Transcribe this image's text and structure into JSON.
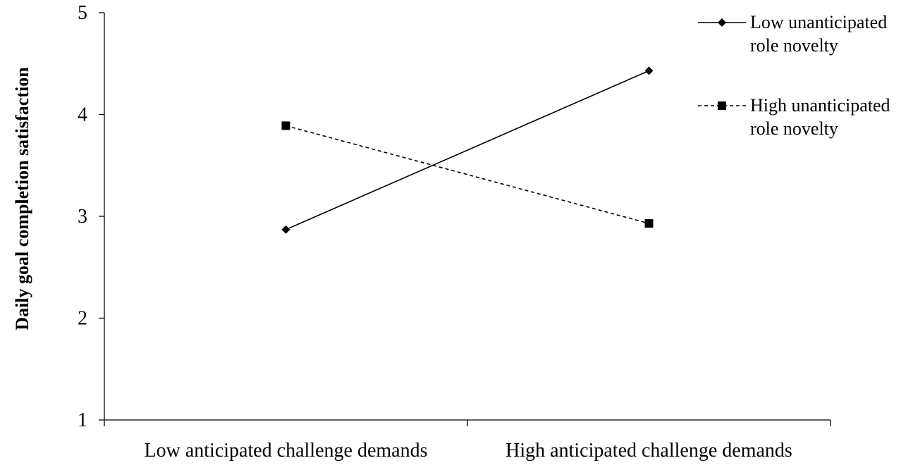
{
  "chart_data": {
    "type": "line",
    "title": "",
    "xlabel": "",
    "ylabel": "Daily goal completion satisfaction",
    "categories": [
      "Low anticipated challenge demands",
      "High anticipated challenge demands"
    ],
    "ylim": [
      1,
      5
    ],
    "yticks": [
      1,
      2,
      3,
      4,
      5
    ],
    "grid": false,
    "legend_position": "top-right",
    "series": [
      {
        "name_lines": [
          "Low unanticipated",
          "role novelty"
        ],
        "values": [
          2.87,
          4.43
        ],
        "line_style": "solid",
        "marker": "diamond",
        "color": "#000000"
      },
      {
        "name_lines": [
          "High unanticipated",
          "role novelty"
        ],
        "values": [
          3.89,
          2.93
        ],
        "line_style": "dashed",
        "marker": "square",
        "color": "#000000"
      }
    ]
  }
}
